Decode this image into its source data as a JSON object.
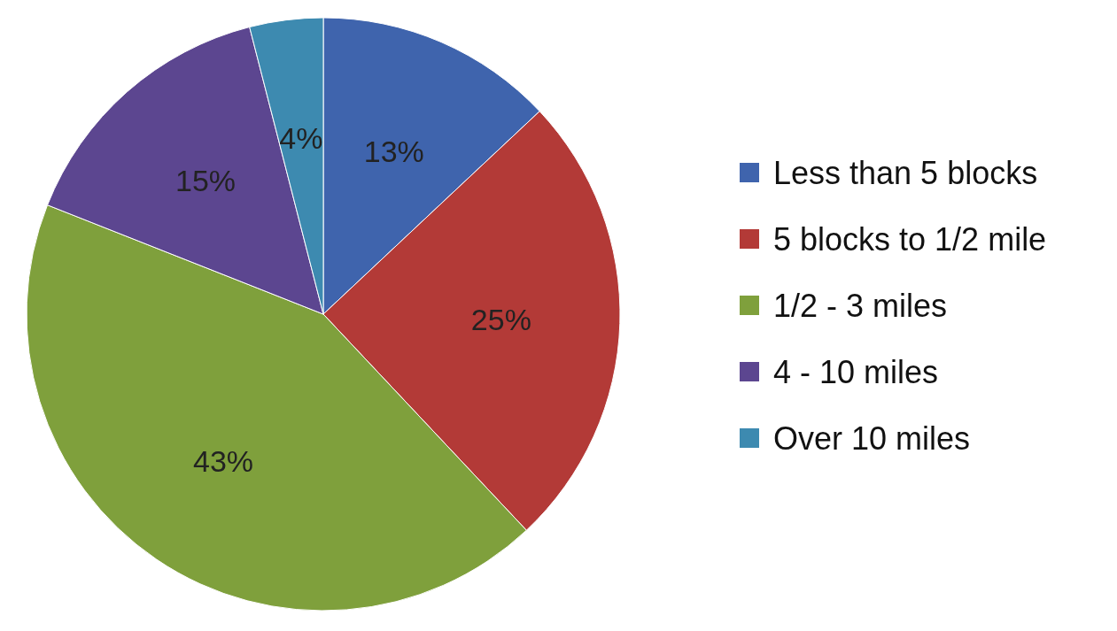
{
  "chart_data": {
    "type": "pie",
    "categories": [
      "Less than 5 blocks",
      "5 blocks to 1/2 mile",
      "1/2 - 3 miles",
      "4 - 10 miles",
      "Over 10 miles"
    ],
    "values": [
      13,
      25,
      43,
      15,
      4
    ],
    "colors": [
      "#3f64ad",
      "#b33a37",
      "#7fa03c",
      "#5c4690",
      "#3d8ab0"
    ],
    "value_labels": [
      "13%",
      "25%",
      "43%",
      "15%",
      "4%"
    ],
    "legend": "right"
  }
}
